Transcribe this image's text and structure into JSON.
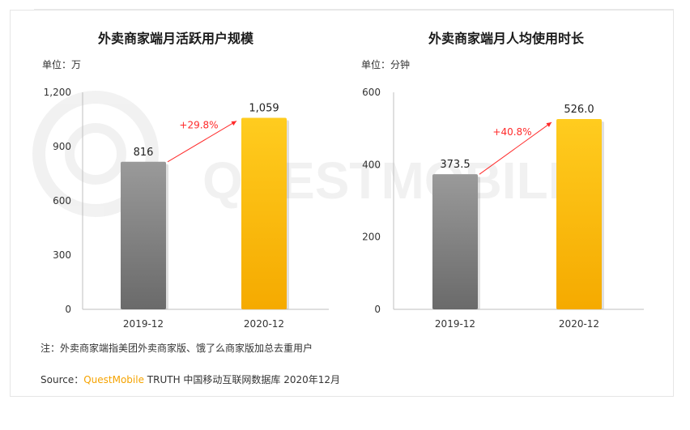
{
  "watermark": "QUESTMOBILE",
  "colors": {
    "gray_top": "#9a9a9a",
    "gray_bottom": "#6a6a6a",
    "gold_top": "#ffcc1f",
    "gold_bottom": "#f5aa00",
    "growth": "#ff2a2a",
    "brand": "#f5a300"
  },
  "chart_data": [
    {
      "type": "bar",
      "title": "外卖商家端月活跃用户规模",
      "unit_label": "单位：万",
      "categories": [
        "2019-12",
        "2020-12"
      ],
      "values": [
        816,
        1059
      ],
      "value_labels": [
        "816",
        "1,059"
      ],
      "ylim": [
        0,
        1200
      ],
      "yticks": [
        0,
        300,
        600,
        900,
        1200
      ],
      "ytick_labels": [
        "0",
        "300",
        "600",
        "900",
        "1,200"
      ],
      "growth_label": "+29.8%",
      "grid": false
    },
    {
      "type": "bar",
      "title": "外卖商家端月人均使用时长",
      "unit_label": "单位：分钟",
      "categories": [
        "2019-12",
        "2020-12"
      ],
      "values": [
        373.5,
        526.0
      ],
      "value_labels": [
        "373.5",
        "526.0"
      ],
      "ylim": [
        0,
        600
      ],
      "yticks": [
        0,
        200,
        400,
        600
      ],
      "ytick_labels": [
        "0",
        "200",
        "400",
        "600"
      ],
      "growth_label": "+40.8%",
      "grid": false
    }
  ],
  "footer": {
    "note": "注：外卖商家端指美团外卖商家版、饿了么商家版加总去重用户",
    "source_prefix": "Source：",
    "source_brand": "QuestMobile",
    "source_rest": " TRUTH 中国移动互联网数据库 2020年12月"
  }
}
